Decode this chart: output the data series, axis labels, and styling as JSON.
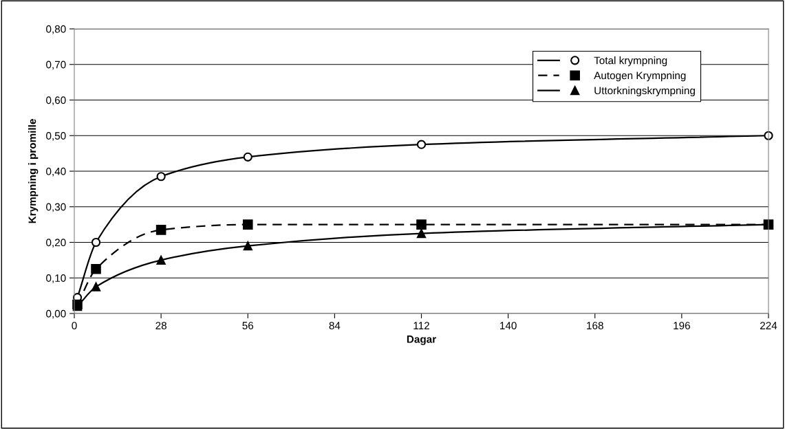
{
  "chart_data": {
    "type": "line",
    "xlabel": "Dagar",
    "ylabel": "Krympning i promille",
    "x": [
      1,
      7,
      28,
      56,
      112,
      224
    ],
    "series": [
      {
        "name": "Total krympning",
        "color": "#000000",
        "values": [
          0.045,
          0.2,
          0.385,
          0.44,
          0.475,
          0.5
        ],
        "marker": "circle",
        "line_style": "solid"
      },
      {
        "name": "Autogen Krympning",
        "color": "#000000",
        "values": [
          0.025,
          0.125,
          0.235,
          0.25,
          0.25,
          0.25
        ],
        "marker": "square",
        "line_style": "dashed"
      },
      {
        "name": "Uttorkningskrympning",
        "color": "#000000",
        "values": [
          0.02,
          0.075,
          0.15,
          0.19,
          0.225,
          0.25
        ],
        "marker": "triangle",
        "line_style": "solid"
      }
    ],
    "xlim": [
      0,
      224
    ],
    "xticks": [
      0,
      28,
      56,
      84,
      112,
      140,
      168,
      196,
      224
    ],
    "ylim": [
      0,
      0.8
    ],
    "yticks": [
      {
        "value": 0,
        "label": "0,00"
      },
      {
        "value": 0.1,
        "label": "0,10"
      },
      {
        "value": 0.2,
        "label": "0,20"
      },
      {
        "value": 0.3,
        "label": "0,30"
      },
      {
        "value": 0.4,
        "label": "0,40"
      },
      {
        "value": 0.5,
        "label": "0,50"
      },
      {
        "value": 0.6,
        "label": "0,60"
      },
      {
        "value": 0.7,
        "label": "0,70"
      },
      {
        "value": 0.8,
        "label": "0,80"
      }
    ],
    "grid": "y",
    "legend": "top right"
  }
}
